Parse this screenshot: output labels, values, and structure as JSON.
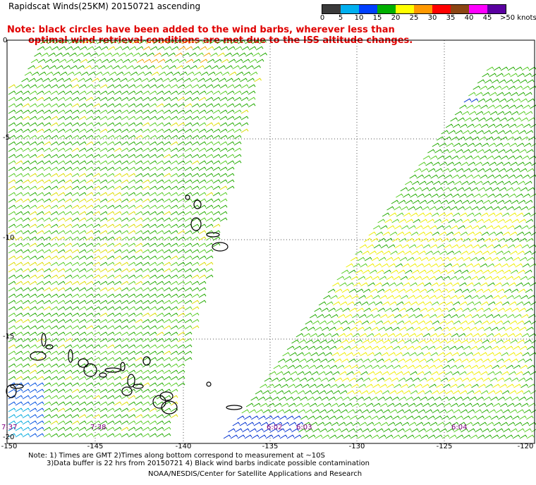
{
  "title": "Rapidscat Winds(25KM) 20150721 ascending",
  "note_line1": "Note: black circles have been added to the wind barbs, wherever less than",
  "note_line2": "optimal wind retrieval conditions are met due to the ISS altitude changes.",
  "colorbar": {
    "labels": [
      "0",
      "5",
      "10",
      "15",
      "20",
      "25",
      "30",
      "35",
      "40",
      "45",
      ">50 knots"
    ],
    "colors": [
      "#3a3a3a",
      "#00b0f0",
      "#0040ff",
      "#00b000",
      "#ffff00",
      "#ff9900",
      "#ff0000",
      "#8b4513",
      "#ff00ff",
      "#5a00a0"
    ]
  },
  "y_axis_labels": [
    "0",
    "-5",
    "-10",
    "-15",
    "-20"
  ],
  "x_axis_labels": [
    "-150",
    "-145",
    "-140",
    "-135",
    "-130",
    "-125",
    "-120"
  ],
  "time_labels": [
    "7:37",
    "7:38",
    "6:02",
    "6:03",
    "6:04"
  ],
  "footer": {
    "line1": "Note: 1) Times are GMT 2)Times along bottom correspond to measurement at ~10S",
    "line2": "3)Data buffer is 22 hrs from 20150721 4) Black wind barbs indicate possible contamination",
    "credit": "NOAA/NESDIS/Center for Satellite Applications and Research"
  }
}
